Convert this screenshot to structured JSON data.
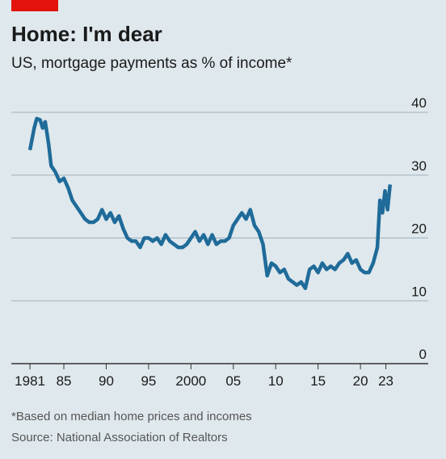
{
  "chart_data": {
    "type": "line",
    "title": "Home: I'm dear",
    "subtitle": "US, mortgage payments as % of income*",
    "footnote": "*Based on median home prices and incomes",
    "source": "Source: National Association of Realtors",
    "x": [
      1981.0,
      1981.5,
      1981.8,
      1982.2,
      1982.5,
      1982.8,
      1983.2,
      1983.5,
      1984.0,
      1984.5,
      1985.0,
      1985.5,
      1986.0,
      1986.5,
      1987.0,
      1987.5,
      1988.0,
      1988.5,
      1989.0,
      1989.5,
      1990.0,
      1990.5,
      1991.0,
      1991.5,
      1992.0,
      1992.5,
      1993.0,
      1993.5,
      1994.0,
      1994.5,
      1995.0,
      1995.5,
      1996.0,
      1996.5,
      1997.0,
      1997.5,
      1998.0,
      1998.5,
      1999.0,
      1999.5,
      2000.0,
      2000.5,
      2001.0,
      2001.5,
      2002.0,
      2002.5,
      2003.0,
      2003.5,
      2004.0,
      2004.5,
      2005.0,
      2005.5,
      2006.0,
      2006.5,
      2007.0,
      2007.5,
      2008.0,
      2008.5,
      2009.0,
      2009.5,
      2010.0,
      2010.5,
      2011.0,
      2011.5,
      2012.0,
      2012.5,
      2013.0,
      2013.5,
      2014.0,
      2014.5,
      2015.0,
      2015.5,
      2016.0,
      2016.5,
      2017.0,
      2017.5,
      2018.0,
      2018.5,
      2019.0,
      2019.5,
      2020.0,
      2020.5,
      2021.0,
      2021.5,
      2022.0,
      2022.3,
      2022.6,
      2022.9,
      2023.2,
      2023.5
    ],
    "series": [
      {
        "color": "#1f6b99",
        "values": [
          34,
          37.5,
          39,
          38.8,
          37.5,
          38.5,
          35,
          31.5,
          30.5,
          29,
          29.5,
          28,
          26,
          25,
          24,
          23,
          22.5,
          22.5,
          23,
          24.5,
          23,
          24,
          22.5,
          23.5,
          21.5,
          20,
          19.5,
          19.5,
          18.5,
          20,
          20,
          19.5,
          20,
          19,
          20.5,
          19.5,
          19,
          18.5,
          18.5,
          19,
          20,
          21,
          19.5,
          20.5,
          19,
          20.5,
          19,
          19.5,
          19.5,
          20,
          22,
          23,
          24,
          23,
          24.5,
          22,
          21,
          19,
          14,
          16,
          15.5,
          14.5,
          15,
          13.5,
          13,
          12.5,
          13,
          12,
          15,
          15.5,
          14.5,
          16,
          15,
          15.5,
          15,
          16,
          16.5,
          17.5,
          16,
          16.5,
          15,
          14.5,
          14.5,
          16,
          18.5,
          26,
          24,
          27.5,
          24.5,
          28.5
        ]
      }
    ],
    "xlim": [
      1978.8,
      2028
    ],
    "ylim": [
      0,
      40
    ],
    "xticks": [
      1981,
      {
        "value": 1985,
        "label": "85"
      },
      {
        "value": 1990,
        "label": "90"
      },
      {
        "value": 1995,
        "label": "95"
      },
      2000,
      {
        "value": 2005,
        "label": "05"
      },
      {
        "value": 2010,
        "label": "10"
      },
      {
        "value": 2015,
        "label": "15"
      },
      {
        "value": 2020,
        "label": "20"
      },
      {
        "value": 2023,
        "label": "23"
      }
    ],
    "yticks": [
      0,
      10,
      20,
      30,
      40
    ],
    "grid": true
  }
}
